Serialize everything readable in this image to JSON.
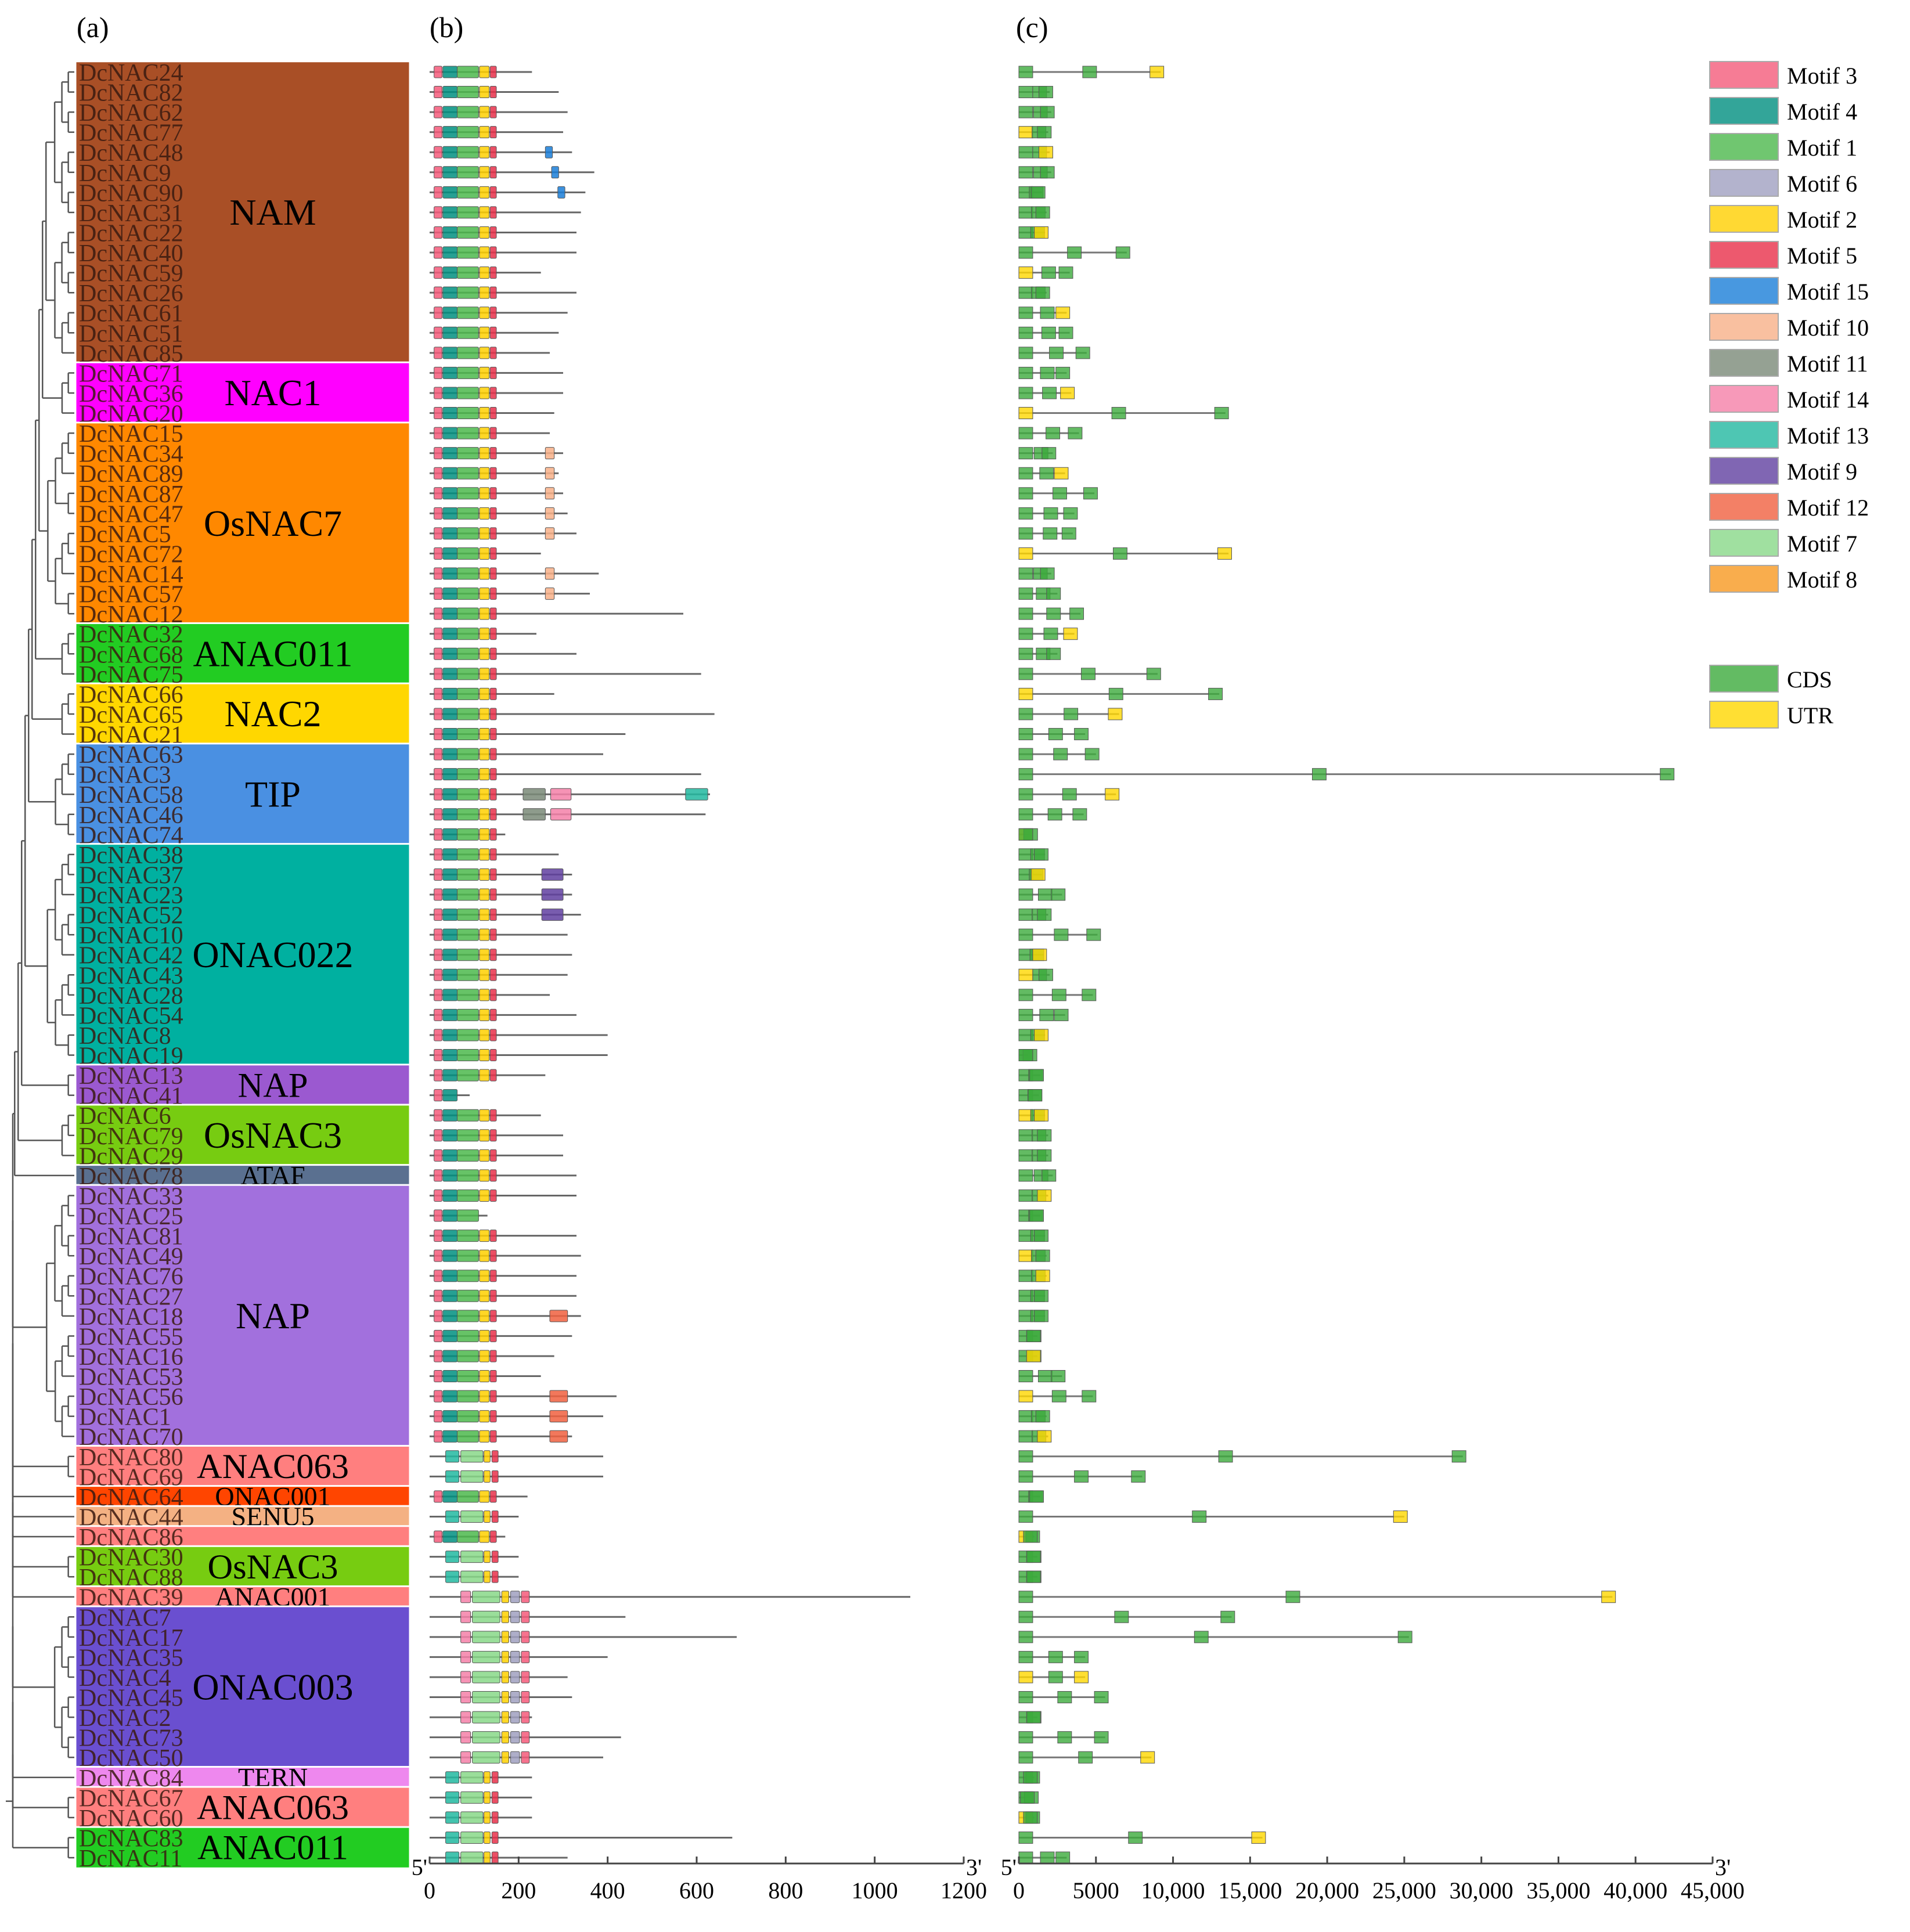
{
  "panel_labels": [
    "(a)",
    "(b)",
    "(c)"
  ],
  "sequences": [
    "DcNAC24",
    "DcNAC82",
    "DcNAC62",
    "DcNAC77",
    "DcNAC48",
    "DcNAC9",
    "DcNAC90",
    "DcNAC31",
    "DcNAC22",
    "DcNAC40",
    "DcNAC59",
    "DcNAC26",
    "DcNAC61",
    "DcNAC51",
    "DcNAC85",
    "DcNAC71",
    "DcNAC36",
    "DcNAC20",
    "DcNAC15",
    "DcNAC34",
    "DcNAC89",
    "DcNAC87",
    "DcNAC47",
    "DcNAC5",
    "DcNAC72",
    "DcNAC14",
    "DcNAC57",
    "DcNAC12",
    "DcNAC32",
    "DcNAC68",
    "DcNAC75",
    "DcNAC66",
    "DcNAC65",
    "DcNAC21",
    "DcNAC63",
    "DcNAC3",
    "DcNAC58",
    "DcNAC46",
    "DcNAC74",
    "DcNAC38",
    "DcNAC37",
    "DcNAC23",
    "DcNAC52",
    "DcNAC10",
    "DcNAC42",
    "DcNAC43",
    "DcNAC28",
    "DcNAC54",
    "DcNAC8",
    "DcNAC19",
    "DcNAC13",
    "DcNAC41",
    "DcNAC6",
    "DcNAC79",
    "DcNAC29",
    "DcNAC78",
    "DcNAC33",
    "DcNAC25",
    "DcNAC81",
    "DcNAC49",
    "DcNAC76",
    "DcNAC27",
    "DcNAC18",
    "DcNAC55",
    "DcNAC16",
    "DcNAC53",
    "DcNAC56",
    "DcNAC1",
    "DcNAC70",
    "DcNAC80",
    "DcNAC69",
    "DcNAC64",
    "DcNAC44",
    "DcNAC86",
    "DcNAC30",
    "DcNAC88",
    "DcNAC39",
    "DcNAC7",
    "DcNAC17",
    "DcNAC35",
    "DcNAC4",
    "DcNAC45",
    "DcNAC2",
    "DcNAC73",
    "DcNAC50",
    "DcNAC84",
    "DcNAC67",
    "DcNAC60",
    "DcNAC83",
    "DcNAC11"
  ],
  "groups": [
    {
      "name": "NAM",
      "start": 0,
      "end": 14,
      "color": "#a94f26"
    },
    {
      "name": "NAC1",
      "start": 15,
      "end": 17,
      "color": "#ff00ff"
    },
    {
      "name": "OsNAC7",
      "start": 18,
      "end": 27,
      "color": "#ff8800"
    },
    {
      "name": "ANAC011",
      "start": 28,
      "end": 30,
      "color": "#22cc22"
    },
    {
      "name": "NAC2",
      "start": 31,
      "end": 33,
      "color": "#ffd700"
    },
    {
      "name": "TIP",
      "start": 34,
      "end": 38,
      "color": "#4a90e2"
    },
    {
      "name": "ONAC022",
      "start": 39,
      "end": 49,
      "color": "#00b0a0"
    },
    {
      "name": "NAP",
      "start": 50,
      "end": 51,
      "color": "#9b59d0"
    },
    {
      "name": "OsNAC3",
      "start": 52,
      "end": 54,
      "color": "#77cc11"
    },
    {
      "name": "ATAF",
      "start": 55,
      "end": 55,
      "color": "#5a7090"
    },
    {
      "name": "NAP",
      "start": 56,
      "end": 68,
      "color": "#a270dd"
    },
    {
      "name": "ANAC063",
      "start": 69,
      "end": 70,
      "color": "#ff7f7f"
    },
    {
      "name": "ONAC001",
      "start": 71,
      "end": 71,
      "color": "#ff4500"
    },
    {
      "name": "SENU5",
      "start": 72,
      "end": 72,
      "color": "#f4b183"
    },
    {
      "name": "",
      "start": 73,
      "end": 73,
      "color": "#ff7f7f"
    },
    {
      "name": "OsNAC3",
      "start": 74,
      "end": 75,
      "color": "#77cc11"
    },
    {
      "name": "ANAC001",
      "start": 76,
      "end": 76,
      "color": "#ff7f7f"
    },
    {
      "name": "ONAC003",
      "start": 77,
      "end": 84,
      "color": "#6a4fd0"
    },
    {
      "name": "TERN",
      "start": 85,
      "end": 85,
      "color": "#ee88ee"
    },
    {
      "name": "ANAC063",
      "start": 86,
      "end": 87,
      "color": "#ff7f7f"
    },
    {
      "name": "ANAC011",
      "start": 88,
      "end": 89,
      "color": "#22cc22"
    }
  ],
  "legend": [
    {
      "label": "Motif 3",
      "color": "#f45b7a"
    },
    {
      "label": "Motif 4",
      "color": "#008f80"
    },
    {
      "label": "Motif 1",
      "color": "#4cb84c"
    },
    {
      "label": "Motif 6",
      "color": "#a0a0c0"
    },
    {
      "label": "Motif 2",
      "color": "#ffd000"
    },
    {
      "label": "Motif 5",
      "color": "#e8304a"
    },
    {
      "label": "Motif 15",
      "color": "#1a7ed8"
    },
    {
      "label": "Motif 10",
      "color": "#f8b088"
    },
    {
      "label": "Motif 11",
      "color": "#7a8a78"
    },
    {
      "label": "Motif 14",
      "color": "#f580a8"
    },
    {
      "label": "Motif 13",
      "color": "#22b8a0"
    },
    {
      "label": "Motif 9",
      "color": "#6040a0"
    },
    {
      "label": "Motif 12",
      "color": "#f06040"
    },
    {
      "label": "Motif 7",
      "color": "#88d888"
    },
    {
      "label": "Motif 8",
      "color": "#f89820"
    },
    {
      "label": "CDS",
      "color": "#3caa3c"
    },
    {
      "label": "UTR",
      "color": "#ffd700"
    }
  ],
  "axis_b": {
    "ticks": [
      "0",
      "200",
      "400",
      "600",
      "800",
      "1000",
      "1200"
    ],
    "values": [
      0,
      200,
      400,
      600,
      800,
      1000,
      1200
    ],
    "left_end": "5'",
    "right_end": "3'"
  },
  "axis_c": {
    "ticks": [
      "0",
      "5000",
      "10,000",
      "15,000",
      "20,000",
      "25,000",
      "30,000",
      "35,000",
      "40,000",
      "45,000"
    ],
    "values": [
      0,
      5000,
      10000,
      15000,
      20000,
      25000,
      30000,
      35000,
      40000,
      45000
    ],
    "left_end": "5'",
    "right_end": "3'"
  },
  "chart_data": {
    "type": "diagram",
    "panel_b_protein_lengths_aa": [
      230,
      290,
      310,
      300,
      320,
      370,
      350,
      340,
      330,
      330,
      250,
      330,
      310,
      290,
      270,
      300,
      300,
      280,
      270,
      300,
      290,
      300,
      310,
      330,
      250,
      380,
      360,
      570,
      240,
      330,
      610,
      280,
      640,
      440,
      390,
      610,
      630,
      620,
      170,
      290,
      320,
      320,
      340,
      310,
      320,
      310,
      270,
      330,
      400,
      400,
      260,
      90,
      250,
      300,
      300,
      330,
      330,
      130,
      330,
      340,
      330,
      330,
      340,
      320,
      280,
      250,
      420,
      390,
      320,
      390,
      390,
      220,
      200,
      170,
      200,
      200,
      1080,
      440,
      690,
      400,
      310,
      320,
      230,
      430,
      390,
      230,
      230,
      230,
      680,
      310
    ],
    "panel_c_gene_lengths_bp": [
      9200,
      2000,
      2100,
      1900,
      2000,
      2100,
      1500,
      1800,
      1700,
      7000,
      3300,
      1800,
      3100,
      3300,
      4400,
      3100,
      3400,
      13400,
      3900,
      2200,
      3000,
      4900,
      3600,
      3500,
      13600,
      2100,
      2500,
      4000,
      3600,
      2500,
      9000,
      13000,
      6500,
      4300,
      5000,
      42300,
      6300,
      4200,
      700,
      1700,
      1500,
      2800,
      1900,
      5100,
      1600,
      2000,
      4800,
      3000,
      1700,
      600,
      1400,
      1300,
      1700,
      1900,
      1900,
      2200,
      1900,
      1400,
      1700,
      1800,
      1800,
      1700,
      1700,
      1200,
      1200,
      2800,
      4800,
      1800,
      1900,
      28800,
      8000,
      1400,
      25000,
      1000,
      1200,
      1200,
      38500,
      13800,
      25300,
      4300,
      4300,
      5600,
      1200,
      5600,
      8600,
      1000,
      800,
      1000,
      15800,
      3100
    ]
  }
}
